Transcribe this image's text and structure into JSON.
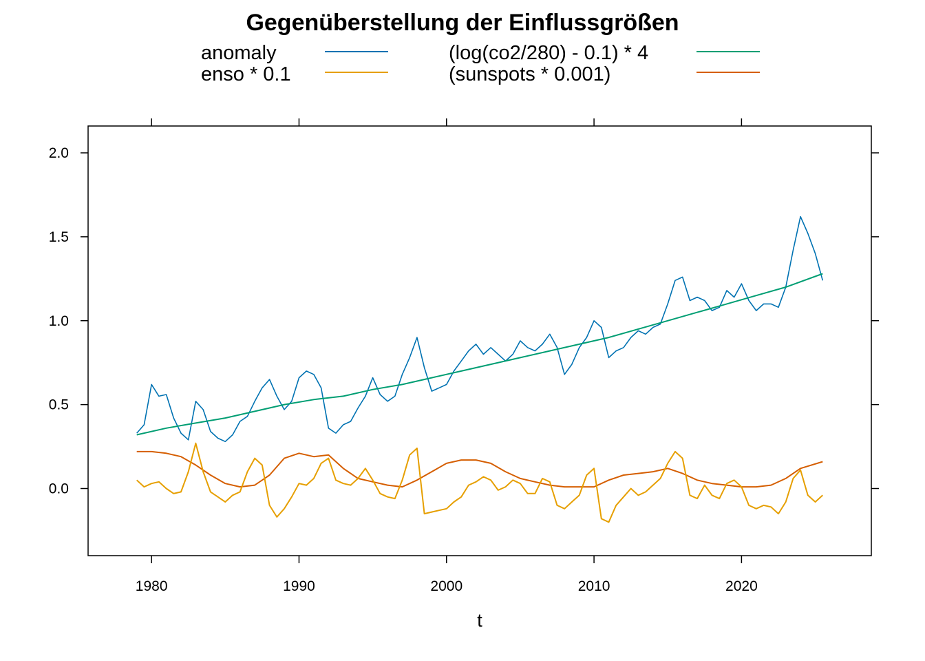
{
  "chart_data": {
    "type": "line",
    "title": "Gegenüberstellung der Einflussgrößen",
    "xlabel": "t",
    "ylabel": "",
    "xlim": [
      1975.7,
      2028.8
    ],
    "ylim": [
      -0.4,
      2.16
    ],
    "x_ticks": [
      1980,
      1990,
      2000,
      2010,
      2020
    ],
    "x_tick_labels": [
      "1980",
      "1990",
      "2000",
      "2010",
      "2020"
    ],
    "y_ticks": [
      0.0,
      0.5,
      1.0,
      1.5,
      2.0
    ],
    "y_tick_labels": [
      "0.0",
      "0.5",
      "1.0",
      "1.5",
      "2.0"
    ],
    "grid": false,
    "legend_position": "top",
    "legend": [
      {
        "label": "anomaly",
        "color": "#0072B2"
      },
      {
        "label": "enso * 0.1",
        "color": "#E69F00"
      },
      {
        "label": "(log(co2/280) - 0.1) * 4",
        "color": "#009E73"
      },
      {
        "label": "(sunspots * 0.001)",
        "color": "#D55E00"
      }
    ],
    "series": [
      {
        "name": "anomaly",
        "color": "#0072B2",
        "x": [
          1979.0,
          1979.5,
          1980.0,
          1980.5,
          1981.0,
          1981.5,
          1982.0,
          1982.5,
          1983.0,
          1983.5,
          1984.0,
          1984.5,
          1985.0,
          1985.5,
          1986.0,
          1986.5,
          1987.0,
          1987.5,
          1988.0,
          1988.5,
          1989.0,
          1989.5,
          1990.0,
          1990.5,
          1991.0,
          1991.5,
          1992.0,
          1992.5,
          1993.0,
          1993.5,
          1994.0,
          1994.5,
          1995.0,
          1995.5,
          1996.0,
          1996.5,
          1997.0,
          1997.5,
          1998.0,
          1998.5,
          1999.0,
          1999.5,
          2000.0,
          2000.5,
          2001.0,
          2001.5,
          2002.0,
          2002.5,
          2003.0,
          2003.5,
          2004.0,
          2004.5,
          2005.0,
          2005.5,
          2006.0,
          2006.5,
          2007.0,
          2007.5,
          2008.0,
          2008.5,
          2009.0,
          2009.5,
          2010.0,
          2010.5,
          2011.0,
          2011.5,
          2012.0,
          2012.5,
          2013.0,
          2013.5,
          2014.0,
          2014.5,
          2015.0,
          2015.5,
          2016.0,
          2016.5,
          2017.0,
          2017.5,
          2018.0,
          2018.5,
          2019.0,
          2019.5,
          2020.0,
          2020.5,
          2021.0,
          2021.5,
          2022.0,
          2022.5,
          2023.0,
          2023.5,
          2024.0,
          2024.5,
          2025.0,
          2025.5
        ],
        "y": [
          0.33,
          0.38,
          0.62,
          0.55,
          0.56,
          0.42,
          0.33,
          0.29,
          0.52,
          0.47,
          0.34,
          0.3,
          0.28,
          0.32,
          0.4,
          0.43,
          0.52,
          0.6,
          0.65,
          0.55,
          0.47,
          0.52,
          0.66,
          0.7,
          0.68,
          0.6,
          0.36,
          0.33,
          0.38,
          0.4,
          0.48,
          0.55,
          0.66,
          0.56,
          0.52,
          0.55,
          0.68,
          0.78,
          0.9,
          0.72,
          0.58,
          0.6,
          0.62,
          0.7,
          0.76,
          0.82,
          0.86,
          0.8,
          0.84,
          0.8,
          0.76,
          0.8,
          0.88,
          0.84,
          0.82,
          0.86,
          0.92,
          0.84,
          0.68,
          0.74,
          0.84,
          0.9,
          1.0,
          0.96,
          0.78,
          0.82,
          0.84,
          0.9,
          0.94,
          0.92,
          0.96,
          0.98,
          1.1,
          1.24,
          1.26,
          1.12,
          1.14,
          1.12,
          1.06,
          1.08,
          1.18,
          1.14,
          1.22,
          1.12,
          1.06,
          1.1,
          1.1,
          1.08,
          1.2,
          1.42,
          1.62,
          1.52,
          1.4,
          1.24
        ]
      },
      {
        "name": "enso * 0.1",
        "color": "#E69F00",
        "x": [
          1979.0,
          1979.5,
          1980.0,
          1980.5,
          1981.0,
          1981.5,
          1982.0,
          1982.5,
          1983.0,
          1983.5,
          1984.0,
          1984.5,
          1985.0,
          1985.5,
          1986.0,
          1986.5,
          1987.0,
          1987.5,
          1988.0,
          1988.5,
          1989.0,
          1989.5,
          1990.0,
          1990.5,
          1991.0,
          1991.5,
          1992.0,
          1992.5,
          1993.0,
          1993.5,
          1994.0,
          1994.5,
          1995.0,
          1995.5,
          1996.0,
          1996.5,
          1997.0,
          1997.5,
          1998.0,
          1998.5,
          1999.0,
          1999.5,
          2000.0,
          2000.5,
          2001.0,
          2001.5,
          2002.0,
          2002.5,
          2003.0,
          2003.5,
          2004.0,
          2004.5,
          2005.0,
          2005.5,
          2006.0,
          2006.5,
          2007.0,
          2007.5,
          2008.0,
          2008.5,
          2009.0,
          2009.5,
          2010.0,
          2010.5,
          2011.0,
          2011.5,
          2012.0,
          2012.5,
          2013.0,
          2013.5,
          2014.0,
          2014.5,
          2015.0,
          2015.5,
          2016.0,
          2016.5,
          2017.0,
          2017.5,
          2018.0,
          2018.5,
          2019.0,
          2019.5,
          2020.0,
          2020.5,
          2021.0,
          2021.5,
          2022.0,
          2022.5,
          2023.0,
          2023.5,
          2024.0,
          2024.5,
          2025.0,
          2025.5
        ],
        "y": [
          0.05,
          0.01,
          0.03,
          0.04,
          0.0,
          -0.03,
          -0.02,
          0.1,
          0.27,
          0.1,
          -0.02,
          -0.05,
          -0.08,
          -0.04,
          -0.02,
          0.1,
          0.18,
          0.14,
          -0.1,
          -0.17,
          -0.12,
          -0.05,
          0.03,
          0.02,
          0.06,
          0.15,
          0.18,
          0.05,
          0.03,
          0.02,
          0.06,
          0.12,
          0.05,
          -0.03,
          -0.05,
          -0.06,
          0.05,
          0.2,
          0.24,
          -0.15,
          -0.14,
          -0.13,
          -0.12,
          -0.08,
          -0.05,
          0.02,
          0.04,
          0.07,
          0.05,
          -0.01,
          0.01,
          0.05,
          0.03,
          -0.03,
          -0.03,
          0.06,
          0.04,
          -0.1,
          -0.12,
          -0.08,
          -0.04,
          0.08,
          0.12,
          -0.18,
          -0.2,
          -0.1,
          -0.05,
          0.0,
          -0.04,
          -0.02,
          0.02,
          0.06,
          0.15,
          0.22,
          0.18,
          -0.04,
          -0.06,
          0.02,
          -0.04,
          -0.06,
          0.03,
          0.05,
          0.01,
          -0.1,
          -0.12,
          -0.1,
          -0.11,
          -0.15,
          -0.08,
          0.06,
          0.11,
          -0.04,
          -0.08,
          -0.04
        ]
      },
      {
        "name": "(log(co2/280) - 0.1) * 4",
        "color": "#009E73",
        "x": [
          1979,
          1981,
          1983,
          1985,
          1987,
          1989,
          1991,
          1993,
          1995,
          1997,
          1999,
          2001,
          2003,
          2005,
          2007,
          2009,
          2011,
          2013,
          2015,
          2017,
          2019,
          2021,
          2023,
          2025.5
        ],
        "y": [
          0.32,
          0.36,
          0.39,
          0.42,
          0.46,
          0.5,
          0.53,
          0.55,
          0.59,
          0.62,
          0.66,
          0.7,
          0.74,
          0.78,
          0.82,
          0.86,
          0.9,
          0.95,
          1.0,
          1.05,
          1.1,
          1.15,
          1.2,
          1.28
        ]
      },
      {
        "name": "(sunspots * 0.001)",
        "color": "#D55E00",
        "x": [
          1979.0,
          1980.0,
          1981.0,
          1982.0,
          1983.0,
          1984.0,
          1985.0,
          1986.0,
          1987.0,
          1988.0,
          1989.0,
          1990.0,
          1991.0,
          1992.0,
          1993.0,
          1994.0,
          1995.0,
          1996.0,
          1997.0,
          1998.0,
          1999.0,
          2000.0,
          2001.0,
          2002.0,
          2003.0,
          2004.0,
          2005.0,
          2006.0,
          2007.0,
          2008.0,
          2009.0,
          2010.0,
          2011.0,
          2012.0,
          2013.0,
          2014.0,
          2015.0,
          2016.0,
          2017.0,
          2018.0,
          2019.0,
          2020.0,
          2021.0,
          2022.0,
          2023.0,
          2024.0,
          2025.5
        ],
        "y": [
          0.22,
          0.22,
          0.21,
          0.19,
          0.14,
          0.08,
          0.03,
          0.01,
          0.02,
          0.08,
          0.18,
          0.21,
          0.19,
          0.2,
          0.12,
          0.06,
          0.04,
          0.02,
          0.01,
          0.05,
          0.1,
          0.15,
          0.17,
          0.17,
          0.15,
          0.1,
          0.06,
          0.04,
          0.02,
          0.01,
          0.01,
          0.01,
          0.05,
          0.08,
          0.09,
          0.1,
          0.12,
          0.09,
          0.05,
          0.03,
          0.02,
          0.01,
          0.01,
          0.02,
          0.06,
          0.12,
          0.16
        ]
      }
    ]
  }
}
